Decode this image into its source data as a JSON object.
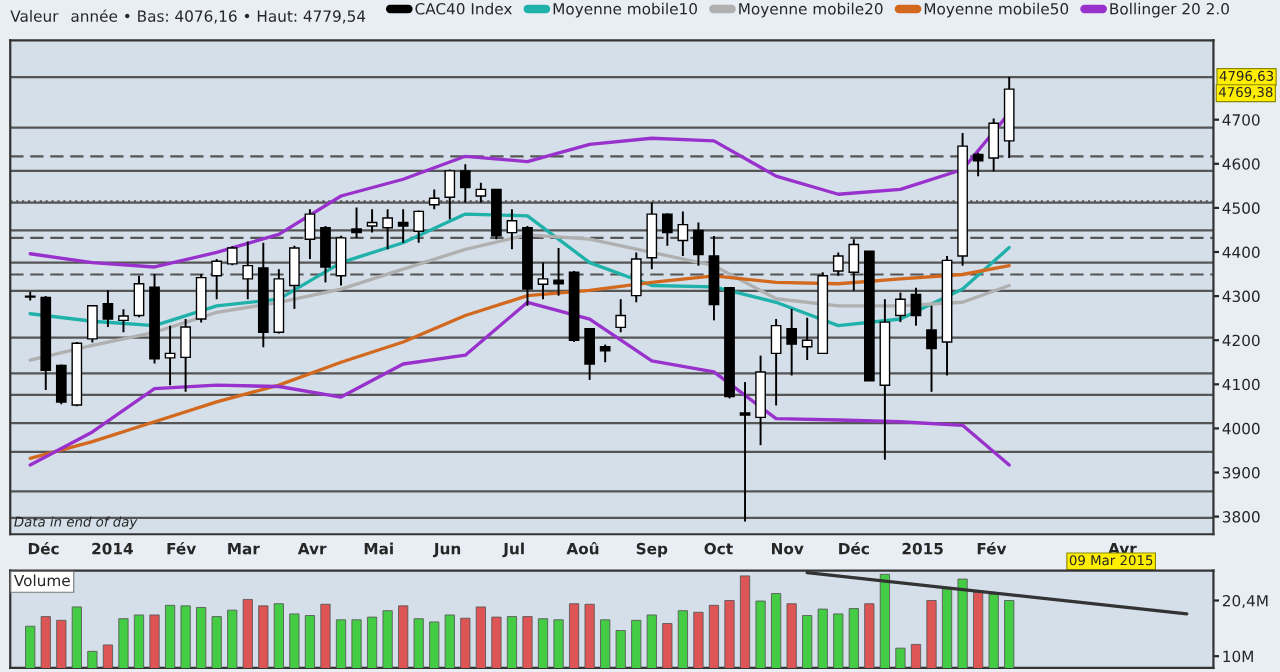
{
  "chart_data": [
    {
      "type": "candlestick",
      "title": "Valeur",
      "subtitle": "année • Bas: 4076,16 • Haut: 4779,54",
      "legend": "top",
      "grid": false,
      "tick_labels": "xy",
      "xlim": [
        "2013-11-16",
        "2015-05-12"
      ],
      "ylim": [
        3760,
        4880
      ],
      "xticks": [
        {
          "value": "2013-12-01",
          "label": "Déc"
        },
        {
          "value": "2014-01-01",
          "label": "2014"
        },
        {
          "value": "2014-02-01",
          "label": "Fév"
        },
        {
          "value": "2014-03-01",
          "label": "Mar"
        },
        {
          "value": "2014-04-01",
          "label": "Avr"
        },
        {
          "value": "2014-05-01",
          "label": "Mai"
        },
        {
          "value": "2014-06-01",
          "label": "Jun"
        },
        {
          "value": "2014-07-01",
          "label": "Jul"
        },
        {
          "value": "2014-08-01",
          "label": "Aoû"
        },
        {
          "value": "2014-09-01",
          "label": "Sep"
        },
        {
          "value": "2014-10-01",
          "label": "Oct"
        },
        {
          "value": "2014-11-01",
          "label": "Nov"
        },
        {
          "value": "2014-12-01",
          "label": "Déc"
        },
        {
          "value": "2015-01-01",
          "label": "2015"
        },
        {
          "value": "2015-02-01",
          "label": "Fév"
        },
        {
          "value": "2015-04-01",
          "label": "Avr"
        }
      ],
      "yticks": [
        3800,
        3900,
        4000,
        4100,
        4200,
        4300,
        4400,
        4500,
        4600,
        4700
      ],
      "series": [
        {
          "name": "CAC40 Index",
          "type": "candlestick",
          "color": "#000000",
          "x": [
            "2013-11-25",
            "2013-12-02",
            "2013-12-09",
            "2013-12-16",
            "2013-12-23",
            "2013-12-30",
            "2014-01-06",
            "2014-01-13",
            "2014-01-20",
            "2014-01-27",
            "2014-02-03",
            "2014-02-10",
            "2014-02-17",
            "2014-02-24",
            "2014-03-03",
            "2014-03-10",
            "2014-03-17",
            "2014-03-24",
            "2014-03-31",
            "2014-04-07",
            "2014-04-14",
            "2014-04-21",
            "2014-04-28",
            "2014-05-05",
            "2014-05-12",
            "2014-05-19",
            "2014-05-26",
            "2014-06-02",
            "2014-06-09",
            "2014-06-16",
            "2014-06-23",
            "2014-06-30",
            "2014-07-07",
            "2014-07-14",
            "2014-07-21",
            "2014-07-28",
            "2014-08-04",
            "2014-08-11",
            "2014-08-18",
            "2014-08-25",
            "2014-09-01",
            "2014-09-08",
            "2014-09-15",
            "2014-09-22",
            "2014-09-29",
            "2014-10-06",
            "2014-10-13",
            "2014-10-20",
            "2014-10-27",
            "2014-11-03",
            "2014-11-10",
            "2014-11-17",
            "2014-11-24",
            "2014-12-01",
            "2014-12-08",
            "2014-12-15",
            "2014-12-22",
            "2014-12-29",
            "2015-01-05",
            "2015-01-12",
            "2015-01-19",
            "2015-01-26",
            "2015-02-02",
            "2015-02-09"
          ],
          "ohlc": [
            [
              4300,
              4310,
              4290,
              4298
            ],
            [
              4297,
              4300,
              4087,
              4132
            ],
            [
              4143,
              4145,
              4055,
              4060
            ],
            [
              4053,
              4196,
              4050,
              4193
            ],
            [
              4203,
              4280,
              4195,
              4278
            ],
            [
              4283,
              4313,
              4230,
              4248
            ],
            [
              4245,
              4270,
              4218,
              4255
            ],
            [
              4256,
              4346,
              4252,
              4328
            ],
            [
              4320,
              4350,
              4147,
              4158
            ],
            [
              4160,
              4233,
              4098,
              4170
            ],
            [
              4161,
              4248,
              4083,
              4230
            ],
            [
              4248,
              4350,
              4240,
              4342
            ],
            [
              4346,
              4384,
              4293,
              4379
            ],
            [
              4373,
              4413,
              4370,
              4409
            ],
            [
              4339,
              4424,
              4293,
              4369
            ],
            [
              4364,
              4421,
              4184,
              4218
            ],
            [
              4218,
              4361,
              4215,
              4339
            ],
            [
              4324,
              4414,
              4271,
              4409
            ],
            [
              4429,
              4497,
              4384,
              4486
            ],
            [
              4455,
              4459,
              4331,
              4366
            ],
            [
              4346,
              4437,
              4324,
              4432
            ],
            [
              4452,
              4501,
              4432,
              4444
            ],
            [
              4459,
              4497,
              4444,
              4467
            ],
            [
              4455,
              4497,
              4406,
              4477
            ],
            [
              4467,
              4497,
              4421,
              4459
            ],
            [
              4447,
              4494,
              4421,
              4492
            ],
            [
              4507,
              4542,
              4497,
              4522
            ],
            [
              4524,
              4587,
              4474,
              4584
            ],
            [
              4584,
              4599,
              4512,
              4546
            ],
            [
              4527,
              4557,
              4512,
              4542
            ],
            [
              4542,
              4542,
              4429,
              4437
            ],
            [
              4444,
              4497,
              4406,
              4471
            ],
            [
              4455,
              4459,
              4278,
              4316
            ],
            [
              4327,
              4376,
              4293,
              4339
            ],
            [
              4336,
              4409,
              4301,
              4328
            ],
            [
              4354,
              4357,
              4196,
              4200
            ],
            [
              4226,
              4226,
              4110,
              4146
            ],
            [
              4185,
              4190,
              4150,
              4176
            ],
            [
              4229,
              4293,
              4218,
              4256
            ],
            [
              4301,
              4399,
              4286,
              4384
            ],
            [
              4387,
              4512,
              4361,
              4486
            ],
            [
              4486,
              4488,
              4414,
              4444
            ],
            [
              4426,
              4492,
              4391,
              4462
            ],
            [
              4449,
              4467,
              4369,
              4394
            ],
            [
              4391,
              4436,
              4245,
              4281
            ],
            [
              4319,
              4319,
              4068,
              4072
            ],
            [
              4035,
              4105,
              3789,
              4030
            ],
            [
              4025,
              4165,
              3962,
              4128
            ],
            [
              4170,
              4248,
              4052,
              4233
            ],
            [
              4226,
              4271,
              4120,
              4191
            ],
            [
              4185,
              4251,
              4155,
              4200
            ],
            [
              4170,
              4354,
              4170,
              4346
            ],
            [
              4357,
              4399,
              4346,
              4391
            ],
            [
              4354,
              4429,
              4312,
              4417
            ],
            [
              4402,
              4402,
              4108,
              4108
            ],
            [
              4098,
              4293,
              3929,
              4241
            ],
            [
              4256,
              4308,
              4241,
              4293
            ],
            [
              4304,
              4319,
              4233,
              4256
            ],
            [
              4223,
              4278,
              4083,
              4181
            ],
            [
              4196,
              4391,
              4120,
              4381
            ],
            [
              4391,
              4670,
              4369,
              4640
            ],
            [
              4621,
              4625,
              4572,
              4607
            ],
            [
              4613,
              4703,
              4583,
              4692
            ],
            [
              4652,
              4796.63,
              4613,
              4769.38
            ]
          ]
        },
        {
          "name": "Moyenne mobile10",
          "type": "line",
          "color": "#20b2aa",
          "x": [
            "2013-11-25",
            "2013-12-23",
            "2014-01-20",
            "2014-02-17",
            "2014-03-17",
            "2014-04-14",
            "2014-05-12",
            "2014-06-09",
            "2014-07-07",
            "2014-08-04",
            "2014-09-01",
            "2014-09-29",
            "2014-10-27",
            "2014-11-24",
            "2014-12-22",
            "2015-01-19",
            "2015-02-09"
          ],
          "values": [
            4260,
            4243,
            4233,
            4278,
            4293,
            4376,
            4421,
            4486,
            4482,
            4376,
            4324,
            4321,
            4286,
            4233,
            4248,
            4316,
            4410
          ]
        },
        {
          "name": "Moyenne mobile20",
          "type": "line",
          "color": "#b0b0b0",
          "x": [
            "2013-11-25",
            "2013-12-23",
            "2014-01-20",
            "2014-02-17",
            "2014-03-17",
            "2014-04-14",
            "2014-05-12",
            "2014-06-09",
            "2014-07-07",
            "2014-08-04",
            "2014-09-01",
            "2014-09-29",
            "2014-10-27",
            "2014-11-24",
            "2014-12-22",
            "2015-01-19",
            "2015-02-09"
          ],
          "values": [
            4155,
            4188,
            4218,
            4263,
            4286,
            4316,
            4361,
            4406,
            4439,
            4429,
            4399,
            4369,
            4294,
            4278,
            4278,
            4286,
            4324
          ]
        },
        {
          "name": "Moyenne mobile50",
          "type": "line",
          "color": "#d2691e",
          "x": [
            "2013-11-25",
            "2013-12-23",
            "2014-01-20",
            "2014-02-17",
            "2014-03-17",
            "2014-04-14",
            "2014-05-12",
            "2014-06-09",
            "2014-07-07",
            "2014-08-04",
            "2014-09-01",
            "2014-09-29",
            "2014-10-27",
            "2014-11-24",
            "2014-12-22",
            "2015-01-19",
            "2015-02-09"
          ],
          "values": [
            3932,
            3970,
            4015,
            4060,
            4098,
            4150,
            4196,
            4256,
            4301,
            4313,
            4331,
            4346,
            4331,
            4328,
            4339,
            4349,
            4369
          ]
        },
        {
          "name": "Bollinger 20 2.0",
          "type": "line",
          "color": "#9932cc",
          "x": [
            "2013-11-25",
            "2013-12-23",
            "2014-01-20",
            "2014-02-17",
            "2014-03-17",
            "2014-04-14",
            "2014-05-12",
            "2014-06-09",
            "2014-07-07",
            "2014-08-04",
            "2014-09-01",
            "2014-09-29",
            "2014-10-27",
            "2014-11-24",
            "2014-12-22",
            "2015-01-19",
            "2015-02-09"
          ],
          "values": [
            4396,
            4376,
            4366,
            4399,
            4440,
            4527,
            4565,
            4617,
            4605,
            4644,
            4658,
            4652,
            4572,
            4531,
            4542,
            4587,
            4715
          ]
        },
        {
          "type": "line",
          "color": "#9932cc",
          "x": [
            "2013-11-25",
            "2013-12-23",
            "2014-01-20",
            "2014-02-17",
            "2014-03-17",
            "2014-04-14",
            "2014-05-12",
            "2014-06-09",
            "2014-07-07",
            "2014-08-04",
            "2014-09-01",
            "2014-09-29",
            "2014-10-27",
            "2014-11-24",
            "2014-12-22",
            "2015-01-19",
            "2015-02-09"
          ],
          "values": [
            3917,
            3992,
            4090,
            4098,
            4095,
            4071,
            4146,
            4166,
            4286,
            4248,
            4153,
            4128,
            4022,
            4019,
            4015,
            4007,
            3917
          ]
        }
      ],
      "ref_lines": [
        {
          "axis": "y",
          "value": 4796.63,
          "label": "4796,63",
          "line_style": "solid"
        },
        {
          "axis": "y",
          "value": 4682,
          "line_style": "solid"
        },
        {
          "axis": "y",
          "value": 4617,
          "line_style": "dashed"
        },
        {
          "axis": "y",
          "value": 4584,
          "line_style": "solid"
        },
        {
          "axis": "y",
          "value": 4515,
          "line_style": "dotted"
        },
        {
          "axis": "y",
          "value": 4512,
          "line_style": "solid"
        },
        {
          "axis": "y",
          "value": 4449,
          "line_style": "solid"
        },
        {
          "axis": "y",
          "value": 4432,
          "line_style": "dashed"
        },
        {
          "axis": "y",
          "value": 4376,
          "line_style": "solid"
        },
        {
          "axis": "y",
          "value": 4349,
          "line_style": "dashed"
        },
        {
          "axis": "y",
          "value": 4312,
          "line_style": "solid"
        },
        {
          "axis": "y",
          "value": 4206,
          "line_style": "solid"
        },
        {
          "axis": "y",
          "value": 4125,
          "line_style": "solid"
        },
        {
          "axis": "y",
          "value": 4076.16,
          "line_style": "solid"
        },
        {
          "axis": "y",
          "value": 4012,
          "line_style": "solid"
        },
        {
          "axis": "y",
          "value": 3947,
          "line_style": "solid"
        },
        {
          "axis": "y",
          "value": 3857,
          "line_style": "solid"
        },
        {
          "axis": "y",
          "value": 3797,
          "line_style": "solid"
        }
      ],
      "annotations": [
        "Data in end of day",
        "4769,38",
        "09 Mar 2015"
      ]
    },
    {
      "type": "bar",
      "title": "Volume",
      "tick_labels": "y",
      "grid": false,
      "x": [
        "2013-11-25",
        "2013-12-02",
        "2013-12-09",
        "2013-12-16",
        "2013-12-23",
        "2013-12-30",
        "2014-01-06",
        "2014-01-13",
        "2014-01-20",
        "2014-01-27",
        "2014-02-03",
        "2014-02-10",
        "2014-02-17",
        "2014-02-24",
        "2014-03-03",
        "2014-03-10",
        "2014-03-17",
        "2014-03-24",
        "2014-03-31",
        "2014-04-07",
        "2014-04-14",
        "2014-04-21",
        "2014-04-28",
        "2014-05-05",
        "2014-05-12",
        "2014-05-19",
        "2014-05-26",
        "2014-06-02",
        "2014-06-09",
        "2014-06-16",
        "2014-06-23",
        "2014-06-30",
        "2014-07-07",
        "2014-07-14",
        "2014-07-21",
        "2014-07-28",
        "2014-08-04",
        "2014-08-11",
        "2014-08-18",
        "2014-08-25",
        "2014-09-01",
        "2014-09-08",
        "2014-09-15",
        "2014-09-22",
        "2014-09-29",
        "2014-10-06",
        "2014-10-13",
        "2014-10-20",
        "2014-10-27",
        "2014-11-03",
        "2014-11-10",
        "2014-11-17",
        "2014-11-24",
        "2014-12-01",
        "2014-12-08",
        "2014-12-15",
        "2014-12-22",
        "2014-12-29",
        "2015-01-05",
        "2015-01-12",
        "2015-01-19",
        "2015-01-26",
        "2015-02-02",
        "2015-02-09"
      ],
      "values": [
        15.6,
        17.4,
        16.7,
        19.2,
        10.9,
        12.1,
        17.0,
        17.7,
        17.7,
        19.5,
        19.4,
        19.1,
        17.4,
        18.6,
        20.6,
        19.4,
        19.8,
        17.9,
        17.6,
        19.7,
        16.8,
        16.8,
        17.3,
        18.5,
        19.4,
        17.0,
        16.4,
        17.7,
        17.1,
        19.2,
        17.3,
        17.4,
        17.4,
        17.0,
        16.8,
        19.8,
        19.7,
        16.8,
        14.8,
        16.7,
        17.7,
        16.1,
        18.5,
        18.2,
        19.5,
        20.4,
        25.0,
        20.3,
        21.7,
        19.8,
        17.6,
        18.8,
        17.9,
        18.9,
        19.8,
        25.3,
        11.5,
        12.2,
        20.4,
        22.6,
        24.4,
        21.9,
        21.6,
        20.4
      ],
      "colors": [
        "#44cc44",
        "#dd5555",
        "#dd5555",
        "#44cc44",
        "#44cc44",
        "#dd5555",
        "#44cc44",
        "#44cc44",
        "#dd5555",
        "#44cc44",
        "#44cc44",
        "#44cc44",
        "#44cc44",
        "#44cc44",
        "#dd5555",
        "#dd5555",
        "#44cc44",
        "#44cc44",
        "#44cc44",
        "#dd5555",
        "#44cc44",
        "#44cc44",
        "#44cc44",
        "#44cc44",
        "#dd5555",
        "#44cc44",
        "#44cc44",
        "#44cc44",
        "#dd5555",
        "#dd5555",
        "#dd5555",
        "#44cc44",
        "#dd5555",
        "#44cc44",
        "#44cc44",
        "#dd5555",
        "#dd5555",
        "#44cc44",
        "#44cc44",
        "#44cc44",
        "#44cc44",
        "#dd5555",
        "#44cc44",
        "#dd5555",
        "#dd5555",
        "#dd5555",
        "#dd5555",
        "#44cc44",
        "#44cc44",
        "#dd5555",
        "#44cc44",
        "#44cc44",
        "#44cc44",
        "#44cc44",
        "#dd5555",
        "#44cc44",
        "#44cc44",
        "#dd5555",
        "#dd5555",
        "#44cc44",
        "#44cc44",
        "#dd5555",
        "#44cc44",
        "#44cc44"
      ],
      "series": [
        {
          "type": "line",
          "color": "#333333",
          "x": [
            "2014-11-10",
            "2015-04-30"
          ],
          "values": [
            25.6,
            17.9
          ]
        }
      ],
      "xlim": [
        "2013-11-16",
        "2015-05-12"
      ],
      "ylim": [
        7.8,
        26.0
      ],
      "yticks": [
        {
          "value": 10,
          "label": "10M"
        },
        {
          "value": 20.4,
          "label": "20,4M"
        }
      ]
    }
  ]
}
